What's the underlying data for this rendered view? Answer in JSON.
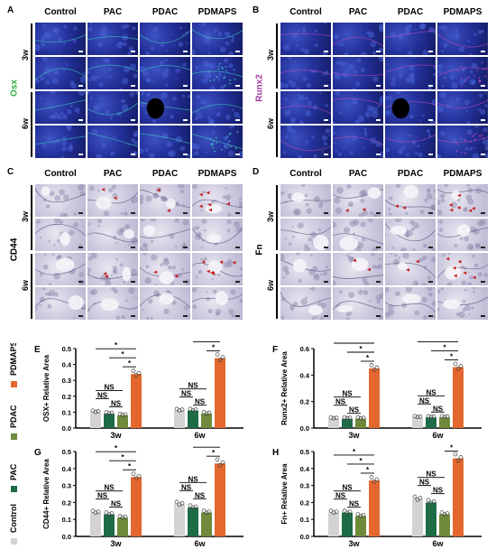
{
  "panels": {
    "A": {
      "label": "A",
      "stain": "Osx",
      "stain_color": "#2fae3a",
      "columns": [
        "Control",
        "PAC",
        "PDAC",
        "PDMAPS"
      ],
      "rows": [
        "3w",
        "6w"
      ]
    },
    "B": {
      "label": "B",
      "stain": "Runx2",
      "stain_color": "#a33ea0",
      "columns": [
        "Control",
        "PAC",
        "PDAC",
        "PDMAPS"
      ],
      "rows": [
        "3w",
        "6w"
      ]
    },
    "C": {
      "label": "C",
      "stain": "CD44",
      "columns": [
        "Control",
        "PAC",
        "PDAC",
        "PDMAPS"
      ],
      "rows": [
        "3w",
        "6w"
      ]
    },
    "D": {
      "label": "D",
      "stain": "Fn",
      "columns": [
        "Control",
        "PAC",
        "PDAC",
        "PDMAPS"
      ],
      "rows": [
        "3w",
        "6w"
      ]
    }
  },
  "legend": {
    "items": [
      {
        "name": "Control",
        "color": "#d3d3d3"
      },
      {
        "name": "PAC",
        "color": "#1e6b47"
      },
      {
        "name": "PDAC",
        "color": "#6e8a3a"
      },
      {
        "name": "PDMAPS",
        "color": "#e3672e"
      }
    ]
  },
  "colors": {
    "control": "#d3d3d3",
    "pac": "#1e6b47",
    "pdac": "#6e8a3a",
    "pdmaps": "#e3672e"
  },
  "chart_data": [
    {
      "panel": "E",
      "type": "bar",
      "ylabel": "OSX+ Relative Area",
      "categories": [
        "3w",
        "6w"
      ],
      "ylim": [
        0,
        0.5
      ],
      "yticks": [
        "0.0",
        "0.1",
        "0.2",
        "0.3",
        "0.4",
        "0.5"
      ],
      "series": [
        {
          "name": "Control",
          "values": [
            0.1,
            0.11
          ]
        },
        {
          "name": "PAC",
          "values": [
            0.09,
            0.11
          ]
        },
        {
          "name": "PDAC",
          "values": [
            0.08,
            0.09
          ]
        },
        {
          "name": "PDMAPS",
          "values": [
            0.34,
            0.44
          ]
        }
      ],
      "sig": [
        "*",
        "*",
        "*",
        "NS",
        "NS",
        "NS"
      ]
    },
    {
      "panel": "F",
      "type": "bar",
      "ylabel": "Runx2+ Relative Area",
      "categories": [
        "3w",
        "6w"
      ],
      "ylim": [
        0,
        0.6
      ],
      "yticks": [
        "0.0",
        "0.2",
        "0.4",
        "0.6"
      ],
      "series": [
        {
          "name": "Control",
          "values": [
            0.07,
            0.08
          ]
        },
        {
          "name": "PAC",
          "values": [
            0.07,
            0.08
          ]
        },
        {
          "name": "PDAC",
          "values": [
            0.07,
            0.08
          ]
        },
        {
          "name": "PDMAPS",
          "values": [
            0.45,
            0.46
          ]
        }
      ],
      "sig": [
        "*",
        "*",
        "*",
        "NS",
        "NS",
        "NS"
      ]
    },
    {
      "panel": "G",
      "type": "bar",
      "ylabel": "CD44+ Relative Area",
      "categories": [
        "3w",
        "6w"
      ],
      "ylim": [
        0,
        0.5
      ],
      "yticks": [
        "0.0",
        "0.1",
        "0.2",
        "0.3",
        "0.4",
        "0.5"
      ],
      "series": [
        {
          "name": "Control",
          "values": [
            0.14,
            0.19
          ]
        },
        {
          "name": "PAC",
          "values": [
            0.13,
            0.17
          ]
        },
        {
          "name": "PDAC",
          "values": [
            0.11,
            0.14
          ]
        },
        {
          "name": "PDMAPS",
          "values": [
            0.35,
            0.43
          ]
        }
      ],
      "sig": [
        "*",
        "*",
        "*",
        "NS",
        "NS",
        "NS"
      ]
    },
    {
      "panel": "H",
      "type": "bar",
      "ylabel": "Fn+ Relative Area",
      "categories": [
        "3w",
        "6w"
      ],
      "ylim": [
        0,
        0.5
      ],
      "yticks": [
        "0.0",
        "0.1",
        "0.2",
        "0.3",
        "0.4",
        "0.5"
      ],
      "series": [
        {
          "name": "Control",
          "values": [
            0.14,
            0.22
          ]
        },
        {
          "name": "PAC",
          "values": [
            0.14,
            0.2
          ]
        },
        {
          "name": "PDAC",
          "values": [
            0.12,
            0.13
          ]
        },
        {
          "name": "PDMAPS",
          "values": [
            0.33,
            0.46
          ]
        }
      ],
      "sig": [
        "*",
        "*",
        "*",
        "NS",
        "NS",
        "NS"
      ]
    }
  ]
}
